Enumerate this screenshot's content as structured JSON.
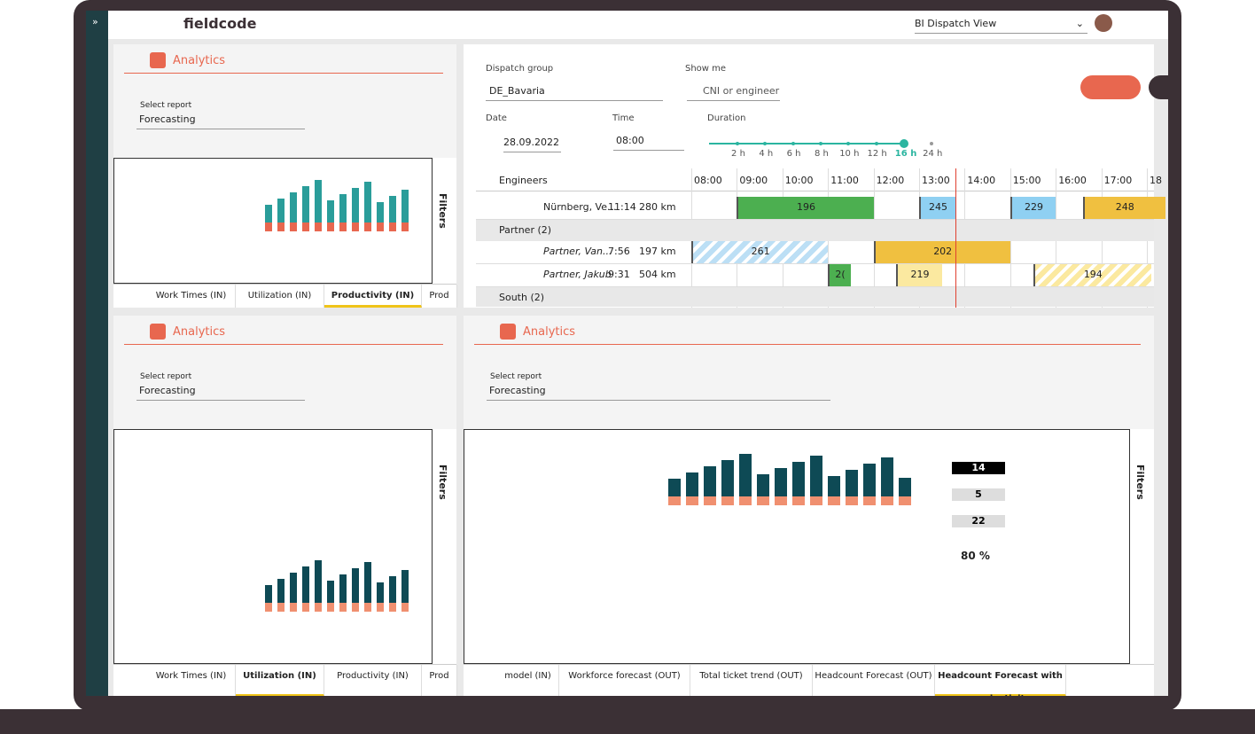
{
  "header": {
    "logo": "fieldcode",
    "view": "BI Dispatch View"
  },
  "analytics": [
    {
      "title": "Analytics",
      "select_label": "Select report",
      "select_value": "Forecasting",
      "filters": "Filters",
      "tabs": [
        "Work Times (IN)",
        "Utilization (IN)",
        "Productivity (IN)",
        "Prod"
      ],
      "active": 2
    },
    {
      "title": "Analytics",
      "select_label": "Select report",
      "select_value": "Forecasting",
      "filters": "Filters",
      "tabs": [
        "Work Times (IN)",
        "Utilization (IN)",
        "Productivity (IN)",
        "Prod"
      ],
      "active": 1
    },
    {
      "title": "Analytics",
      "select_label": "Select report",
      "select_value": "Forecasting",
      "filters": "Filters",
      "tabs": [
        "model (IN)",
        "Workforce forecast (OUT)",
        "Total ticket trend (OUT)",
        "Headcount Forecast (OUT)",
        "Headcount Forecast with productivity"
      ],
      "active": 4,
      "kpis": [
        "80 %",
        "14",
        "5",
        "22"
      ]
    }
  ],
  "dispatch": {
    "group_label": "Dispatch group",
    "group": "DE_Bavaria",
    "show_me": "Show me",
    "search": "CNI or engineer",
    "date_label": "Date",
    "date": "28.09.2022",
    "time_label": "Time",
    "time": "08:00",
    "duration_label": "Duration",
    "durations": [
      "2 h",
      "4 h",
      "6 h",
      "8 h",
      "10 h",
      "12 h",
      "16 h",
      "24 h"
    ],
    "duration_selected": 6,
    "engineers_label": "Engineers",
    "hours": [
      "08:00",
      "09:00",
      "10:00",
      "11:00",
      "12:00",
      "13:00",
      "14:00",
      "15:00",
      "16:00",
      "17:00",
      "18"
    ],
    "rows": [
      {
        "kind": "engineer",
        "name": "Nürnberg, Ve...",
        "time": "11:14",
        "km": "280 km",
        "tasks": [
          "196",
          "245",
          "229",
          "248"
        ]
      },
      {
        "kind": "group",
        "name": "Partner (2)"
      },
      {
        "kind": "engineer",
        "name": "Partner, Van...",
        "time": "7:56",
        "km": "197 km",
        "tasks": [
          "261",
          "202"
        ]
      },
      {
        "kind": "engineer",
        "name": "Partner, Jakub",
        "time": "9:31",
        "km": "504 km",
        "tasks": [
          "2(",
          "219",
          "194"
        ]
      },
      {
        "kind": "group",
        "name": "South (2)"
      }
    ]
  }
}
